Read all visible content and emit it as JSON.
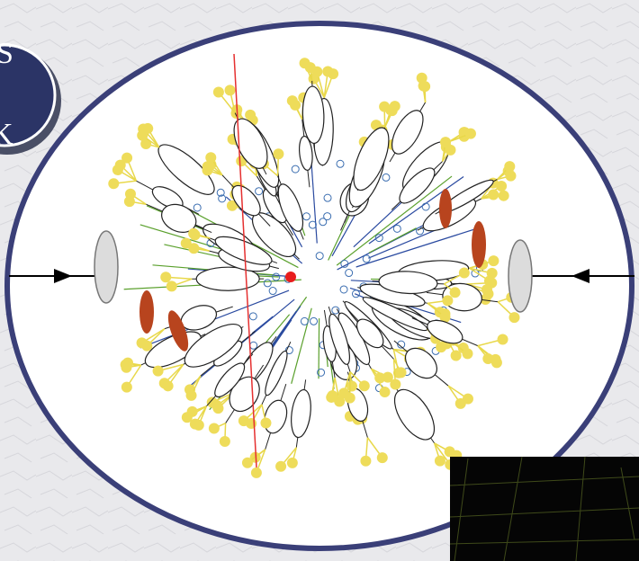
{
  "badge": {
    "lines": [
      "S",
      "K"
    ]
  }
}
